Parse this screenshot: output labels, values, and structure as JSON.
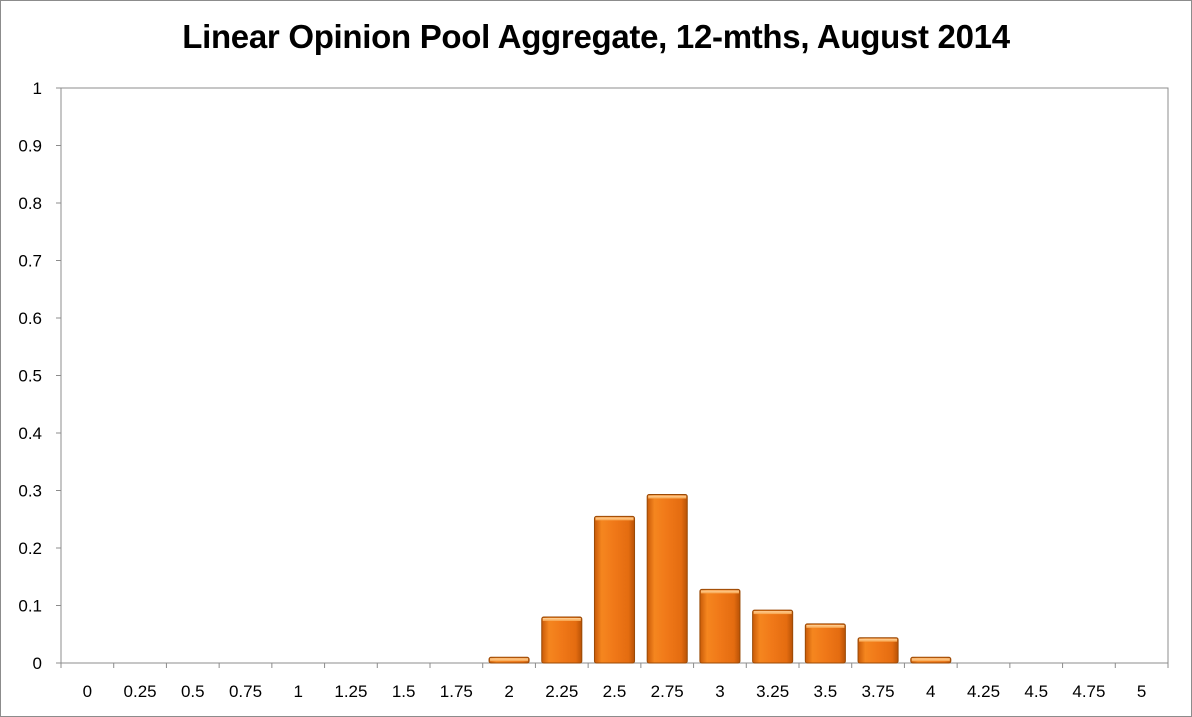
{
  "chart_data": {
    "type": "bar",
    "title": "Linear Opinion Pool Aggregate, 12-mths, August 2014",
    "xlabel": "",
    "ylabel": "",
    "categories": [
      "0",
      "0.25",
      "0.5",
      "0.75",
      "1",
      "1.25",
      "1.5",
      "1.75",
      "2",
      "2.25",
      "2.5",
      "2.75",
      "3",
      "3.25",
      "3.5",
      "3.75",
      "4",
      "4.25",
      "4.5",
      "4.75",
      "5"
    ],
    "values": [
      0,
      0,
      0,
      0,
      0,
      0,
      0,
      0,
      0.01,
      0.08,
      0.255,
      0.293,
      0.128,
      0.092,
      0.068,
      0.044,
      0.01,
      0,
      0,
      0,
      0
    ],
    "ylim": [
      0,
      1
    ],
    "yticks": [
      "0",
      "0.1",
      "0.2",
      "0.3",
      "0.4",
      "0.5",
      "0.6",
      "0.7",
      "0.8",
      "0.9",
      "1"
    ],
    "grid": false,
    "legend": "none",
    "bar_color": "#f07818"
  }
}
